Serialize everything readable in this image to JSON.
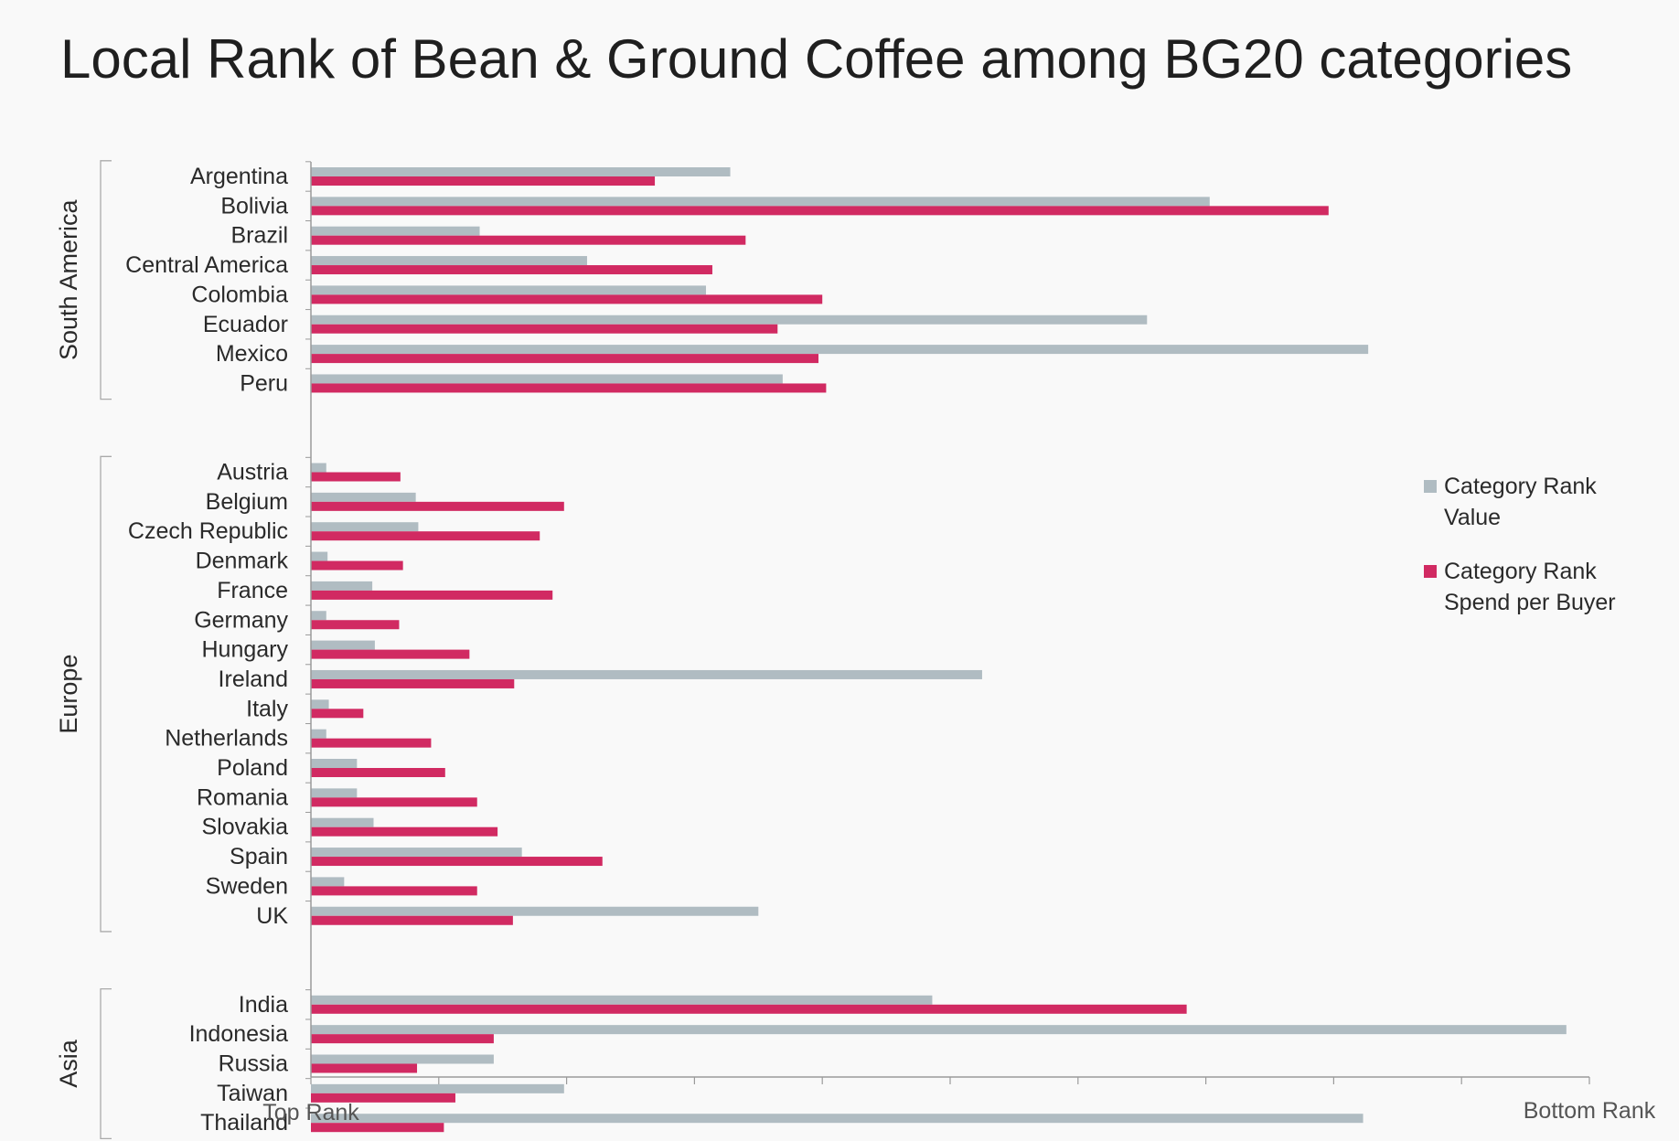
{
  "chart_data": {
    "type": "bar",
    "orientation": "horizontal",
    "title": "Local Rank of Bean & Ground Coffee among BG20 categories",
    "x_axis": {
      "left_label": "Top Rank",
      "right_label": "Bottom Rank",
      "range": [
        0,
        100
      ],
      "grid": false
    },
    "legend": {
      "placement": "right",
      "items": [
        {
          "key": "value",
          "line1": "Category Rank",
          "line2": "Value",
          "color": "#b0bcc2"
        },
        {
          "key": "spend",
          "line1": "Category Rank",
          "line2": "Spend per Buyer",
          "color": "#d12a62"
        }
      ]
    },
    "groups": [
      {
        "region": "South America",
        "countries": [
          {
            "name": "Argentina",
            "value": 32.8,
            "spend": 26.9
          },
          {
            "name": "Bolivia",
            "value": 70.3,
            "spend": 79.6
          },
          {
            "name": "Brazil",
            "value": 13.2,
            "spend": 34.0
          },
          {
            "name": "Central America",
            "value": 21.6,
            "spend": 31.4
          },
          {
            "name": "Colombia",
            "value": 30.9,
            "spend": 40.0
          },
          {
            "name": "Ecuador",
            "value": 65.4,
            "spend": 36.5
          },
          {
            "name": "Mexico",
            "value": 82.7,
            "spend": 39.7
          },
          {
            "name": "Peru",
            "value": 36.9,
            "spend": 40.3
          }
        ]
      },
      {
        "region": "Europe",
        "countries": [
          {
            "name": "Austria",
            "value": 1.2,
            "spend": 7.0
          },
          {
            "name": "Belgium",
            "value": 8.2,
            "spend": 19.8
          },
          {
            "name": "Czech Republic",
            "value": 8.4,
            "spend": 17.9
          },
          {
            "name": "Denmark",
            "value": 1.3,
            "spend": 7.2
          },
          {
            "name": "France",
            "value": 4.8,
            "spend": 18.9
          },
          {
            "name": "Germany",
            "value": 1.2,
            "spend": 6.9
          },
          {
            "name": "Hungary",
            "value": 5.0,
            "spend": 12.4
          },
          {
            "name": "Ireland",
            "value": 52.5,
            "spend": 15.9
          },
          {
            "name": "Italy",
            "value": 1.4,
            "spend": 4.1
          },
          {
            "name": "Netherlands",
            "value": 1.2,
            "spend": 9.4
          },
          {
            "name": "Poland",
            "value": 3.6,
            "spend": 10.5
          },
          {
            "name": "Romania",
            "value": 3.6,
            "spend": 13.0
          },
          {
            "name": "Slovakia",
            "value": 4.9,
            "spend": 14.6
          },
          {
            "name": "Spain",
            "value": 16.5,
            "spend": 22.8
          },
          {
            "name": "Sweden",
            "value": 2.6,
            "spend": 13.0
          },
          {
            "name": "UK",
            "value": 35.0,
            "spend": 15.8
          }
        ]
      },
      {
        "region": "Asia",
        "countries": [
          {
            "name": "India",
            "value": 48.6,
            "spend": 68.5
          },
          {
            "name": "Indonesia",
            "value": 98.2,
            "spend": 14.3
          },
          {
            "name": "Russia",
            "value": 14.3,
            "spend": 8.3
          },
          {
            "name": "Taiwan",
            "value": 19.8,
            "spend": 11.3
          },
          {
            "name": "Thailand",
            "value": 82.3,
            "spend": 10.4
          }
        ]
      }
    ]
  }
}
